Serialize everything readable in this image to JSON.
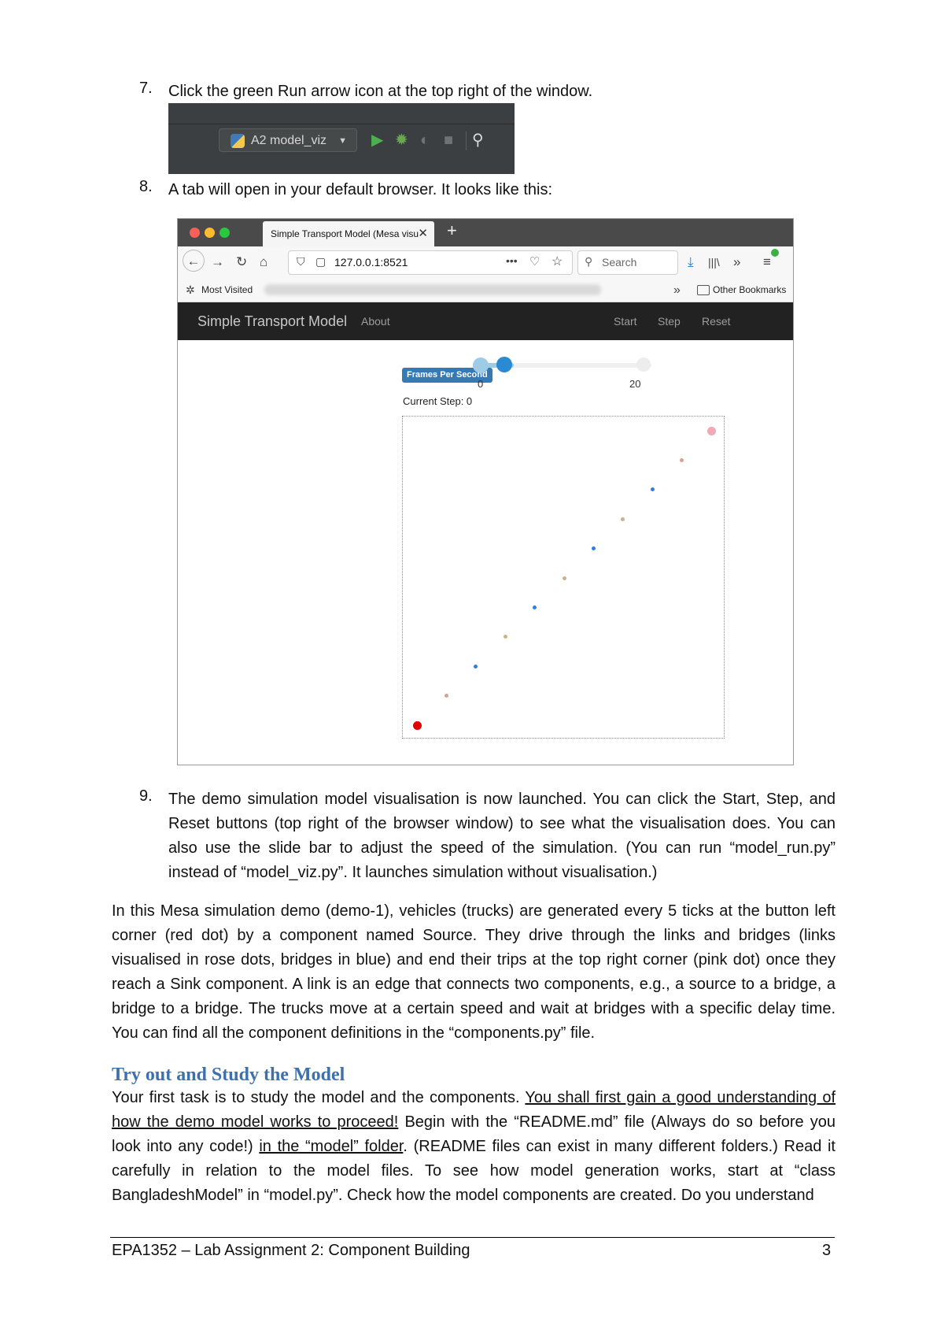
{
  "steps": {
    "s7": {
      "num": "7.",
      "text": "Click the green Run arrow icon at the top right of the window."
    },
    "s8": {
      "num": "8.",
      "text": "A tab will open in your default browser. It looks like this:"
    },
    "s9": {
      "num": "9.",
      "text": "The demo simulation model visualisation is now launched. You can click the Start, Step, and Reset buttons (top right of the browser window) to see what the visualisation does. You can also use the slide bar to adjust the speed of the simulation. (You can run “model_run.py” instead of “model_viz.py”. It launches simulation without visualisation.)"
    }
  },
  "ide": {
    "run_config": "A2 model_viz",
    "icons": [
      "python-icon",
      "dropdown-caret-icon",
      "run-icon",
      "debug-icon",
      "coverage-icon",
      "stop-icon",
      "search-icon"
    ],
    "run_color": "#4caf50"
  },
  "browser": {
    "tab_title": "Simple Transport Model (Mesa visu",
    "url": "127.0.0.1:8521",
    "search_placeholder": "Search",
    "most_visited": "Most Visited",
    "other_bookmarks": "Other Bookmarks",
    "app": {
      "brand": "Simple Transport Model",
      "about": "About",
      "start": "Start",
      "step": "Step",
      "reset": "Reset",
      "fps_label": "Frames Per Second",
      "slider_min": "0",
      "slider_max": "20",
      "slider_value": 0,
      "current_step": "Current Step: 0"
    },
    "points": [
      {
        "x": 0.0,
        "color": "#e00000",
        "size": 11
      },
      {
        "x": 0.1,
        "color": "#d4a493",
        "size": 5
      },
      {
        "x": 0.2,
        "color": "#2f7fe0",
        "size": 5
      },
      {
        "x": 0.3,
        "color": "#c9b189",
        "size": 5
      },
      {
        "x": 0.4,
        "color": "#2f7fe0",
        "size": 5
      },
      {
        "x": 0.5,
        "color": "#c9b189",
        "size": 5
      },
      {
        "x": 0.6,
        "color": "#2f7fe0",
        "size": 5
      },
      {
        "x": 0.7,
        "color": "#c9b189",
        "size": 5
      },
      {
        "x": 0.8,
        "color": "#2f7fe0",
        "size": 5
      },
      {
        "x": 0.9,
        "color": "#d4a493",
        "size": 5
      },
      {
        "x": 1.0,
        "color": "#f4a7b4",
        "size": 11
      }
    ]
  },
  "para1": {
    "text": "In this Mesa simulation demo (demo-1), vehicles (trucks) are generated every 5 ticks at the button left corner (red dot) by a component named Source. They drive through the links and bridges (links visualised in rose dots, bridges in blue) and end their trips at the top right corner (pink dot) once they reach a Sink component. A link is an edge that connects two components, e.g., a source to a bridge, a bridge to a bridge. The trucks move at a certain speed and wait at bridges with a specific delay time. You can find all the component definitions in the “components.py” file."
  },
  "section": {
    "heading": "Try out and Study the Model",
    "p_a": "Your first task is to study the model and the components. ",
    "p_u1": "You shall first gain a good understanding of how the demo model works to proceed!",
    "p_b": " Begin with the “README.md” file (Always do so before you look into any code!) ",
    "p_u2": "in the “model” folder",
    "p_c": ". (README files can exist in many different folders.) Read it carefully in relation to the model files. To see how model generation works, start at “class BangladeshModel” in “model.py”. Check how the model components are created. Do you understand"
  },
  "footer": {
    "title": "EPA1352 – Lab Assignment 2: Component Building",
    "page": "3"
  }
}
